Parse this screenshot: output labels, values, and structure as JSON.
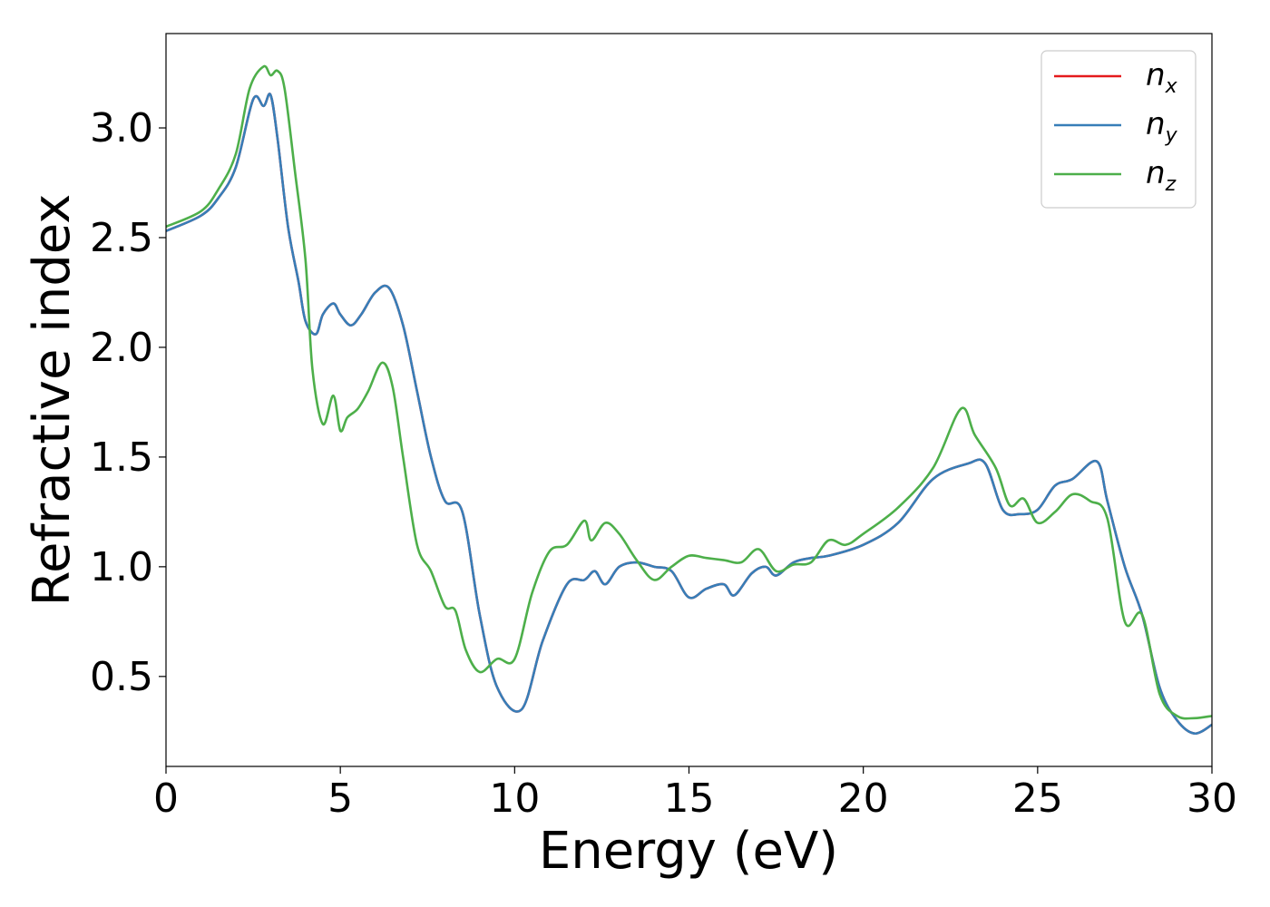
{
  "chart_data": {
    "type": "line",
    "title": "",
    "xlabel": "Energy (eV)",
    "ylabel": "Refractive index",
    "xlim": [
      0,
      30
    ],
    "ylim": [
      0.09,
      3.43
    ],
    "xticks": [
      "0",
      "5",
      "10",
      "15",
      "20",
      "25",
      "30"
    ],
    "yticks": [
      "0.5",
      "1.0",
      "1.5",
      "2.0",
      "2.5",
      "3.0"
    ],
    "grid": false,
    "legend_position": "top-right",
    "series": [
      {
        "name": "n_x",
        "label_base": "n",
        "label_sub": "x",
        "color": "#e41a1c",
        "x": [
          0,
          1,
          1.5,
          2,
          2.5,
          2.8,
          3.0,
          3.2,
          3.5,
          3.8,
          4.0,
          4.3,
          4.5,
          4.8,
          5.0,
          5.3,
          5.6,
          6.0,
          6.4,
          6.8,
          7.2,
          7.6,
          8.0,
          8.5,
          9.0,
          9.5,
          10.2,
          10.8,
          11.5,
          12.0,
          12.3,
          12.6,
          13.0,
          13.5,
          14.0,
          14.5,
          15.0,
          15.5,
          16.0,
          16.3,
          16.8,
          17.2,
          17.5,
          18.0,
          18.5,
          19.0,
          20.0,
          21.0,
          22.0,
          23.0,
          23.5,
          24.0,
          24.5,
          25.0,
          25.5,
          26.0,
          26.7,
          27.0,
          27.5,
          28.0,
          28.5,
          29.0,
          29.5,
          30.0
        ],
        "y": [
          2.53,
          2.6,
          2.68,
          2.82,
          3.13,
          3.1,
          3.15,
          2.95,
          2.55,
          2.3,
          2.12,
          2.06,
          2.15,
          2.2,
          2.15,
          2.1,
          2.15,
          2.25,
          2.27,
          2.1,
          1.8,
          1.5,
          1.3,
          1.25,
          0.78,
          0.45,
          0.35,
          0.66,
          0.92,
          0.94,
          0.98,
          0.92,
          1.0,
          1.02,
          1.0,
          0.98,
          0.86,
          0.9,
          0.92,
          0.87,
          0.97,
          1.0,
          0.96,
          1.02,
          1.04,
          1.05,
          1.1,
          1.2,
          1.4,
          1.47,
          1.47,
          1.26,
          1.24,
          1.26,
          1.37,
          1.4,
          1.48,
          1.3,
          1.0,
          0.78,
          0.45,
          0.3,
          0.24,
          0.28
        ]
      },
      {
        "name": "n_y",
        "label_base": "n",
        "label_sub": "y",
        "color": "#377eb8",
        "x": [
          0,
          1,
          1.5,
          2,
          2.5,
          2.8,
          3.0,
          3.2,
          3.5,
          3.8,
          4.0,
          4.3,
          4.5,
          4.8,
          5.0,
          5.3,
          5.6,
          6.0,
          6.4,
          6.8,
          7.2,
          7.6,
          8.0,
          8.5,
          9.0,
          9.5,
          10.2,
          10.8,
          11.5,
          12.0,
          12.3,
          12.6,
          13.0,
          13.5,
          14.0,
          14.5,
          15.0,
          15.5,
          16.0,
          16.3,
          16.8,
          17.2,
          17.5,
          18.0,
          18.5,
          19.0,
          20.0,
          21.0,
          22.0,
          23.0,
          23.5,
          24.0,
          24.5,
          25.0,
          25.5,
          26.0,
          26.7,
          27.0,
          27.5,
          28.0,
          28.5,
          29.0,
          29.5,
          30.0
        ],
        "y": [
          2.53,
          2.6,
          2.68,
          2.82,
          3.13,
          3.1,
          3.15,
          2.95,
          2.55,
          2.3,
          2.12,
          2.06,
          2.15,
          2.2,
          2.15,
          2.1,
          2.15,
          2.25,
          2.27,
          2.1,
          1.8,
          1.5,
          1.3,
          1.25,
          0.78,
          0.45,
          0.35,
          0.66,
          0.92,
          0.94,
          0.98,
          0.92,
          1.0,
          1.02,
          1.0,
          0.98,
          0.86,
          0.9,
          0.92,
          0.87,
          0.97,
          1.0,
          0.96,
          1.02,
          1.04,
          1.05,
          1.1,
          1.2,
          1.4,
          1.47,
          1.47,
          1.26,
          1.24,
          1.26,
          1.37,
          1.4,
          1.48,
          1.3,
          1.0,
          0.78,
          0.45,
          0.3,
          0.24,
          0.28
        ]
      },
      {
        "name": "n_z",
        "label_base": "n",
        "label_sub": "z",
        "color": "#4daf4a",
        "x": [
          0,
          1,
          1.5,
          2,
          2.4,
          2.8,
          3.0,
          3.2,
          3.4,
          3.7,
          4.0,
          4.2,
          4.5,
          4.8,
          5.0,
          5.2,
          5.5,
          5.8,
          6.2,
          6.5,
          6.8,
          7.2,
          7.6,
          8.0,
          8.3,
          8.6,
          9.0,
          9.5,
          10.0,
          10.5,
          11.0,
          11.5,
          12.0,
          12.2,
          12.6,
          13.0,
          13.5,
          14.0,
          14.5,
          15.0,
          15.5,
          16.0,
          16.5,
          17.0,
          17.5,
          18.0,
          18.5,
          19.0,
          19.5,
          20.0,
          21.0,
          22.0,
          22.8,
          23.2,
          23.8,
          24.2,
          24.6,
          25.0,
          25.5,
          26.0,
          26.5,
          27.0,
          27.5,
          28.0,
          28.5,
          29.0,
          29.5,
          30.0
        ],
        "y": [
          2.55,
          2.62,
          2.72,
          2.88,
          3.18,
          3.28,
          3.24,
          3.26,
          3.18,
          2.8,
          2.4,
          1.9,
          1.65,
          1.78,
          1.62,
          1.68,
          1.72,
          1.8,
          1.93,
          1.82,
          1.5,
          1.1,
          0.98,
          0.82,
          0.8,
          0.62,
          0.52,
          0.58,
          0.58,
          0.88,
          1.07,
          1.1,
          1.21,
          1.12,
          1.2,
          1.15,
          1.03,
          0.94,
          1.0,
          1.05,
          1.04,
          1.03,
          1.02,
          1.08,
          0.98,
          1.01,
          1.02,
          1.12,
          1.1,
          1.15,
          1.27,
          1.45,
          1.72,
          1.6,
          1.45,
          1.28,
          1.31,
          1.2,
          1.25,
          1.33,
          1.3,
          1.22,
          0.75,
          0.78,
          0.42,
          0.32,
          0.31,
          0.32
        ]
      }
    ]
  }
}
